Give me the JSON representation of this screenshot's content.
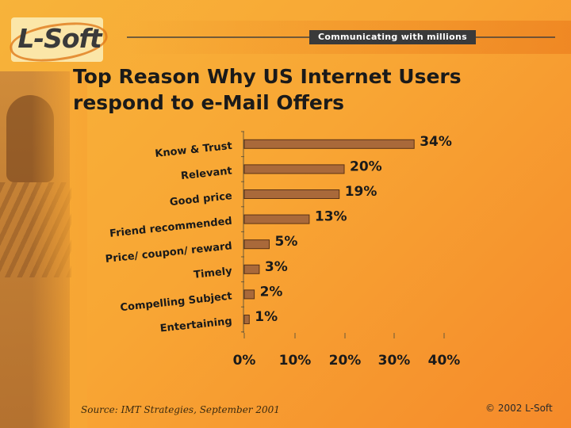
{
  "header": {
    "logo_text": "L-Soft",
    "tagline": "Communicating with millions"
  },
  "title": "Top Reason Why US Internet Users respond to e-Mail Offers",
  "footer": {
    "source": "Source: IMT Strategies, September 2001",
    "copyright": "© 2002 L-Soft"
  },
  "colors": {
    "bar": "#a9693a",
    "bar_edge": "#5a3215",
    "background": "#f8a634"
  },
  "chart_data": {
    "type": "bar",
    "orientation": "horizontal",
    "categories": [
      "Know & Trust",
      "Relevant",
      "Good price",
      "Friend recommended",
      "Price/ coupon/ reward",
      "Timely",
      "Compelling Subject",
      "Entertaining"
    ],
    "values": [
      34,
      20,
      19,
      13,
      5,
      3,
      2,
      1
    ],
    "value_labels": [
      "34%",
      "20%",
      "19%",
      "13%",
      "5%",
      "3%",
      "2%",
      "1%"
    ],
    "x_ticks": [
      "0%",
      "10%",
      "20%",
      "30%",
      "40%"
    ],
    "xlim": [
      0,
      40
    ],
    "grid": false,
    "legend": "none"
  }
}
